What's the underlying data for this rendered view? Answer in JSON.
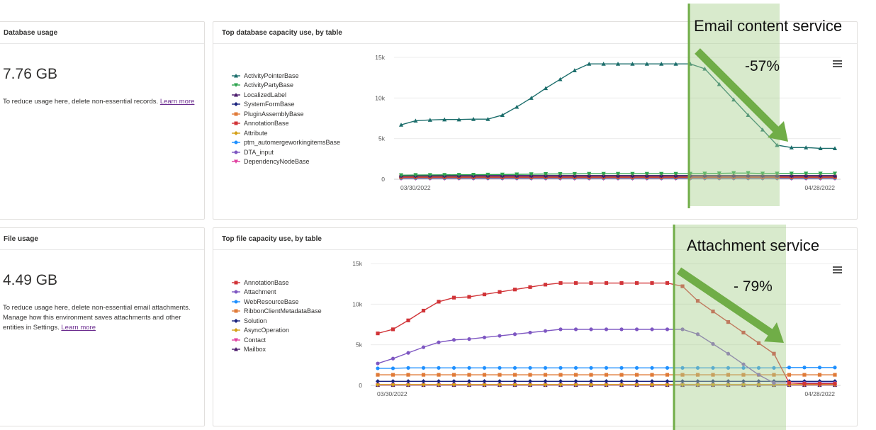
{
  "db_card": {
    "title": "Database usage",
    "value": "7.76 GB",
    "desc_text": "To reduce usage here, delete non-essential records. ",
    "link_label": "Learn more"
  },
  "file_card": {
    "title": "File usage",
    "value": "4.49 GB",
    "desc_text": "To reduce usage here, delete non-essential email attachments. Manage how this environment saves attachments and other entities in Settings. ",
    "link_label": "Learn more"
  },
  "annotations": {
    "db_label": "Email content service",
    "db_change": "-57%",
    "file_label": "Attachment service",
    "file_change": "- 79%"
  },
  "chart_data": [
    {
      "type": "line",
      "title": "Top database capacity use, by table",
      "ylim": [
        0,
        15000
      ],
      "yticks": [
        0,
        5000,
        10000,
        15000
      ],
      "ytick_labels": [
        "0",
        "5k",
        "10k",
        "15k"
      ],
      "xlabels": [
        "03/30/2022",
        "04/28/2022"
      ],
      "legend_position": "left",
      "series": [
        {
          "name": "ActivityPointerBase",
          "color": "#1b6d6b",
          "marker": "triangle",
          "values": [
            6700,
            7200,
            7300,
            7350,
            7350,
            7400,
            7400,
            7900,
            8900,
            10000,
            11200,
            12300,
            13400,
            14200,
            14200,
            14200,
            14200,
            14200,
            14200,
            14200,
            14200,
            13600,
            11700,
            9800,
            7900,
            6100,
            4200,
            3900,
            3900,
            3800,
            3800
          ]
        },
        {
          "name": "ActivityPartyBase",
          "color": "#2ea44f",
          "marker": "triangle-down",
          "values": [
            500,
            520,
            530,
            540,
            550,
            560,
            570,
            580,
            600,
            620,
            640,
            650,
            660,
            670,
            670,
            670,
            670,
            670,
            670,
            670,
            680,
            700,
            720,
            760,
            760,
            700,
            700,
            700,
            700,
            700,
            700
          ]
        },
        {
          "name": "LocalizedLabel",
          "color": "#4a1a6b",
          "marker": "triangle",
          "values": [
            450,
            450,
            450,
            450,
            450,
            450,
            450,
            450,
            450,
            450,
            450,
            450,
            450,
            450,
            450,
            450,
            450,
            450,
            450,
            450,
            450,
            450,
            450,
            450,
            450,
            450,
            450,
            450,
            450,
            450,
            450
          ]
        },
        {
          "name": "SystemFormBase",
          "color": "#1a237e",
          "marker": "diamond",
          "values": [
            400,
            400,
            400,
            400,
            400,
            400,
            400,
            400,
            400,
            400,
            400,
            400,
            400,
            400,
            400,
            400,
            400,
            400,
            400,
            400,
            400,
            400,
            400,
            400,
            400,
            400,
            400,
            400,
            400,
            400,
            400
          ]
        },
        {
          "name": "PluginAssemblyBase",
          "color": "#e07b39",
          "marker": "square",
          "values": [
            350,
            350,
            350,
            350,
            350,
            350,
            350,
            350,
            350,
            350,
            350,
            350,
            350,
            350,
            350,
            350,
            350,
            350,
            350,
            350,
            350,
            350,
            350,
            350,
            350,
            350,
            350,
            350,
            350,
            350,
            350
          ]
        },
        {
          "name": "AnnotationBase",
          "color": "#d13438",
          "marker": "square",
          "values": [
            250,
            250,
            250,
            250,
            250,
            250,
            250,
            250,
            250,
            250,
            250,
            250,
            250,
            250,
            250,
            250,
            250,
            250,
            250,
            250,
            250,
            250,
            250,
            250,
            250,
            250,
            250,
            250,
            250,
            250,
            250
          ]
        },
        {
          "name": "Attribute",
          "color": "#d4a017",
          "marker": "diamond",
          "values": [
            200,
            200,
            200,
            200,
            200,
            200,
            200,
            200,
            200,
            200,
            200,
            200,
            200,
            200,
            200,
            200,
            200,
            200,
            200,
            200,
            200,
            200,
            200,
            200,
            200,
            200,
            200,
            200,
            200,
            200,
            200
          ]
        },
        {
          "name": "ptm_automergeworkingitemsBase",
          "color": "#1e90ff",
          "marker": "circle",
          "values": [
            150,
            150,
            150,
            150,
            150,
            150,
            150,
            150,
            150,
            150,
            150,
            150,
            150,
            150,
            150,
            150,
            150,
            150,
            150,
            150,
            150,
            150,
            150,
            150,
            150,
            150,
            150,
            150,
            150,
            150,
            150
          ]
        },
        {
          "name": "DTA_input",
          "color": "#7e57c2",
          "marker": "circle",
          "values": [
            120,
            120,
            120,
            120,
            120,
            120,
            120,
            120,
            120,
            120,
            120,
            120,
            120,
            120,
            120,
            120,
            120,
            120,
            120,
            120,
            120,
            120,
            120,
            120,
            120,
            120,
            120,
            120,
            120,
            120,
            120
          ]
        },
        {
          "name": "DependencyNodeBase",
          "color": "#e040a0",
          "marker": "triangle-down",
          "values": [
            80,
            80,
            80,
            80,
            80,
            80,
            80,
            80,
            80,
            80,
            80,
            80,
            80,
            80,
            80,
            80,
            80,
            80,
            80,
            80,
            80,
            80,
            80,
            80,
            80,
            80,
            80,
            80,
            80,
            80,
            80
          ]
        }
      ]
    },
    {
      "type": "line",
      "title": "Top file capacity use, by table",
      "ylim": [
        0,
        15000
      ],
      "yticks": [
        0,
        5000,
        10000,
        15000
      ],
      "ytick_labels": [
        "0",
        "5k",
        "10k",
        "15k"
      ],
      "xlabels": [
        "03/30/2022",
        "04/28/2022"
      ],
      "legend_position": "left",
      "series": [
        {
          "name": "AnnotationBase",
          "color": "#d13438",
          "marker": "square",
          "values": [
            6400,
            6900,
            8000,
            9200,
            10300,
            10800,
            10900,
            11200,
            11500,
            11800,
            12100,
            12400,
            12600,
            12600,
            12600,
            12600,
            12600,
            12600,
            12600,
            12600,
            12200,
            10400,
            9100,
            7800,
            6500,
            5200,
            3900,
            300,
            200,
            200,
            200
          ]
        },
        {
          "name": "Attachment",
          "color": "#7e57c2",
          "marker": "circle",
          "values": [
            2700,
            3300,
            4000,
            4700,
            5300,
            5600,
            5700,
            5900,
            6100,
            6300,
            6500,
            6700,
            6900,
            6900,
            6900,
            6900,
            6900,
            6900,
            6900,
            6900,
            6900,
            6300,
            5100,
            3900,
            2600,
            1300,
            300,
            300,
            300,
            300,
            300
          ]
        },
        {
          "name": "WebResourceBase",
          "color": "#1e90ff",
          "marker": "circle",
          "values": [
            2100,
            2100,
            2150,
            2150,
            2150,
            2150,
            2150,
            2150,
            2150,
            2150,
            2150,
            2150,
            2150,
            2150,
            2150,
            2150,
            2150,
            2150,
            2150,
            2150,
            2150,
            2150,
            2150,
            2150,
            2150,
            2150,
            2150,
            2200,
            2200,
            2200,
            2200
          ]
        },
        {
          "name": "RibbonClientMetadataBase",
          "color": "#e07b39",
          "marker": "square",
          "values": [
            1300,
            1300,
            1300,
            1300,
            1300,
            1300,
            1300,
            1300,
            1300,
            1300,
            1300,
            1300,
            1300,
            1300,
            1300,
            1300,
            1300,
            1300,
            1300,
            1300,
            1300,
            1300,
            1300,
            1300,
            1300,
            1300,
            1300,
            1300,
            1300,
            1300,
            1300
          ]
        },
        {
          "name": "Solution",
          "color": "#1a237e",
          "marker": "diamond",
          "values": [
            500,
            500,
            500,
            500,
            500,
            500,
            500,
            500,
            500,
            500,
            500,
            500,
            500,
            500,
            500,
            500,
            500,
            500,
            500,
            500,
            500,
            500,
            500,
            500,
            500,
            500,
            500,
            500,
            500,
            500,
            500
          ]
        },
        {
          "name": "AsyncOperation",
          "color": "#d4a017",
          "marker": "diamond",
          "values": [
            100,
            100,
            100,
            100,
            100,
            100,
            100,
            100,
            100,
            100,
            100,
            100,
            100,
            100,
            100,
            100,
            100,
            100,
            100,
            100,
            100,
            100,
            100,
            100,
            100,
            100,
            100,
            100,
            100,
            100,
            100
          ]
        },
        {
          "name": "Contact",
          "color": "#e040a0",
          "marker": "triangle-down",
          "values": [
            60,
            60,
            60,
            60,
            60,
            60,
            60,
            60,
            60,
            60,
            60,
            60,
            60,
            60,
            60,
            60,
            60,
            60,
            60,
            60,
            60,
            60,
            60,
            60,
            60,
            60,
            60,
            60,
            60,
            60,
            60
          ]
        },
        {
          "name": "Mailbox",
          "color": "#4a1a6b",
          "marker": "triangle",
          "values": [
            40,
            40,
            40,
            40,
            40,
            40,
            40,
            40,
            40,
            40,
            40,
            40,
            40,
            40,
            40,
            40,
            40,
            40,
            40,
            40,
            40,
            40,
            40,
            40,
            40,
            40,
            40,
            40,
            40,
            40,
            40
          ]
        }
      ]
    }
  ]
}
